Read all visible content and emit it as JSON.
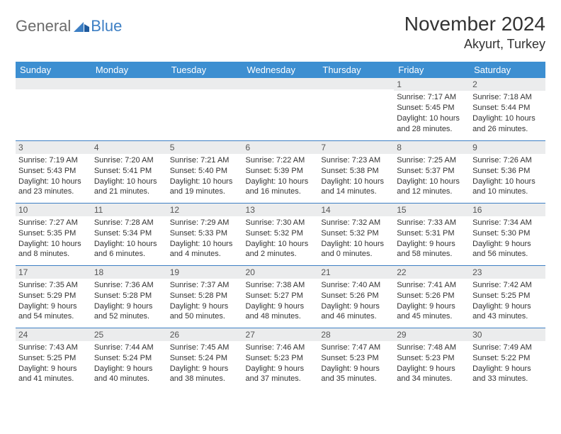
{
  "logo": {
    "text1": "General",
    "text2": "Blue"
  },
  "title": "November 2024",
  "location": "Akyurt, Turkey",
  "colors": {
    "header_bg": "#3d8fd1",
    "header_text": "#ffffff",
    "daynum_bg": "#ebeced",
    "border": "#3d7fc4",
    "logo_gray": "#6b6b6b",
    "logo_blue": "#3d7fc4",
    "text": "#333333"
  },
  "weekdays": [
    "Sunday",
    "Monday",
    "Tuesday",
    "Wednesday",
    "Thursday",
    "Friday",
    "Saturday"
  ],
  "weeks": [
    [
      {
        "day": "",
        "lines": [
          "",
          "",
          "",
          ""
        ]
      },
      {
        "day": "",
        "lines": [
          "",
          "",
          "",
          ""
        ]
      },
      {
        "day": "",
        "lines": [
          "",
          "",
          "",
          ""
        ]
      },
      {
        "day": "",
        "lines": [
          "",
          "",
          "",
          ""
        ]
      },
      {
        "day": "",
        "lines": [
          "",
          "",
          "",
          ""
        ]
      },
      {
        "day": "1",
        "lines": [
          "Sunrise: 7:17 AM",
          "Sunset: 5:45 PM",
          "Daylight: 10 hours",
          "and 28 minutes."
        ]
      },
      {
        "day": "2",
        "lines": [
          "Sunrise: 7:18 AM",
          "Sunset: 5:44 PM",
          "Daylight: 10 hours",
          "and 26 minutes."
        ]
      }
    ],
    [
      {
        "day": "3",
        "lines": [
          "Sunrise: 7:19 AM",
          "Sunset: 5:43 PM",
          "Daylight: 10 hours",
          "and 23 minutes."
        ]
      },
      {
        "day": "4",
        "lines": [
          "Sunrise: 7:20 AM",
          "Sunset: 5:41 PM",
          "Daylight: 10 hours",
          "and 21 minutes."
        ]
      },
      {
        "day": "5",
        "lines": [
          "Sunrise: 7:21 AM",
          "Sunset: 5:40 PM",
          "Daylight: 10 hours",
          "and 19 minutes."
        ]
      },
      {
        "day": "6",
        "lines": [
          "Sunrise: 7:22 AM",
          "Sunset: 5:39 PM",
          "Daylight: 10 hours",
          "and 16 minutes."
        ]
      },
      {
        "day": "7",
        "lines": [
          "Sunrise: 7:23 AM",
          "Sunset: 5:38 PM",
          "Daylight: 10 hours",
          "and 14 minutes."
        ]
      },
      {
        "day": "8",
        "lines": [
          "Sunrise: 7:25 AM",
          "Sunset: 5:37 PM",
          "Daylight: 10 hours",
          "and 12 minutes."
        ]
      },
      {
        "day": "9",
        "lines": [
          "Sunrise: 7:26 AM",
          "Sunset: 5:36 PM",
          "Daylight: 10 hours",
          "and 10 minutes."
        ]
      }
    ],
    [
      {
        "day": "10",
        "lines": [
          "Sunrise: 7:27 AM",
          "Sunset: 5:35 PM",
          "Daylight: 10 hours",
          "and 8 minutes."
        ]
      },
      {
        "day": "11",
        "lines": [
          "Sunrise: 7:28 AM",
          "Sunset: 5:34 PM",
          "Daylight: 10 hours",
          "and 6 minutes."
        ]
      },
      {
        "day": "12",
        "lines": [
          "Sunrise: 7:29 AM",
          "Sunset: 5:33 PM",
          "Daylight: 10 hours",
          "and 4 minutes."
        ]
      },
      {
        "day": "13",
        "lines": [
          "Sunrise: 7:30 AM",
          "Sunset: 5:32 PM",
          "Daylight: 10 hours",
          "and 2 minutes."
        ]
      },
      {
        "day": "14",
        "lines": [
          "Sunrise: 7:32 AM",
          "Sunset: 5:32 PM",
          "Daylight: 10 hours",
          "and 0 minutes."
        ]
      },
      {
        "day": "15",
        "lines": [
          "Sunrise: 7:33 AM",
          "Sunset: 5:31 PM",
          "Daylight: 9 hours",
          "and 58 minutes."
        ]
      },
      {
        "day": "16",
        "lines": [
          "Sunrise: 7:34 AM",
          "Sunset: 5:30 PM",
          "Daylight: 9 hours",
          "and 56 minutes."
        ]
      }
    ],
    [
      {
        "day": "17",
        "lines": [
          "Sunrise: 7:35 AM",
          "Sunset: 5:29 PM",
          "Daylight: 9 hours",
          "and 54 minutes."
        ]
      },
      {
        "day": "18",
        "lines": [
          "Sunrise: 7:36 AM",
          "Sunset: 5:28 PM",
          "Daylight: 9 hours",
          "and 52 minutes."
        ]
      },
      {
        "day": "19",
        "lines": [
          "Sunrise: 7:37 AM",
          "Sunset: 5:28 PM",
          "Daylight: 9 hours",
          "and 50 minutes."
        ]
      },
      {
        "day": "20",
        "lines": [
          "Sunrise: 7:38 AM",
          "Sunset: 5:27 PM",
          "Daylight: 9 hours",
          "and 48 minutes."
        ]
      },
      {
        "day": "21",
        "lines": [
          "Sunrise: 7:40 AM",
          "Sunset: 5:26 PM",
          "Daylight: 9 hours",
          "and 46 minutes."
        ]
      },
      {
        "day": "22",
        "lines": [
          "Sunrise: 7:41 AM",
          "Sunset: 5:26 PM",
          "Daylight: 9 hours",
          "and 45 minutes."
        ]
      },
      {
        "day": "23",
        "lines": [
          "Sunrise: 7:42 AM",
          "Sunset: 5:25 PM",
          "Daylight: 9 hours",
          "and 43 minutes."
        ]
      }
    ],
    [
      {
        "day": "24",
        "lines": [
          "Sunrise: 7:43 AM",
          "Sunset: 5:25 PM",
          "Daylight: 9 hours",
          "and 41 minutes."
        ]
      },
      {
        "day": "25",
        "lines": [
          "Sunrise: 7:44 AM",
          "Sunset: 5:24 PM",
          "Daylight: 9 hours",
          "and 40 minutes."
        ]
      },
      {
        "day": "26",
        "lines": [
          "Sunrise: 7:45 AM",
          "Sunset: 5:24 PM",
          "Daylight: 9 hours",
          "and 38 minutes."
        ]
      },
      {
        "day": "27",
        "lines": [
          "Sunrise: 7:46 AM",
          "Sunset: 5:23 PM",
          "Daylight: 9 hours",
          "and 37 minutes."
        ]
      },
      {
        "day": "28",
        "lines": [
          "Sunrise: 7:47 AM",
          "Sunset: 5:23 PM",
          "Daylight: 9 hours",
          "and 35 minutes."
        ]
      },
      {
        "day": "29",
        "lines": [
          "Sunrise: 7:48 AM",
          "Sunset: 5:23 PM",
          "Daylight: 9 hours",
          "and 34 minutes."
        ]
      },
      {
        "day": "30",
        "lines": [
          "Sunrise: 7:49 AM",
          "Sunset: 5:22 PM",
          "Daylight: 9 hours",
          "and 33 minutes."
        ]
      }
    ]
  ]
}
